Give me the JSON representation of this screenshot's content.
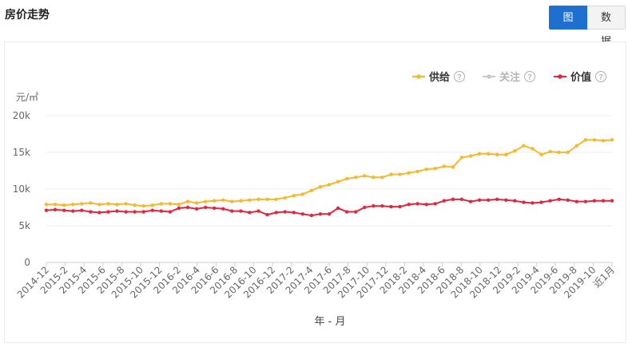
{
  "page": {
    "title": "房价走势"
  },
  "toggle": {
    "chart_label": "图表",
    "data_label": "数据"
  },
  "legend": [
    {
      "name": "供给",
      "color": "#f5b82e",
      "active": true
    },
    {
      "name": "关注",
      "color": "#c8c8c8",
      "active": false
    },
    {
      "name": "价值",
      "color": "#e2263f",
      "active": true
    }
  ],
  "chart_data": {
    "type": "line",
    "ylabel": "元/㎡",
    "xlabel": "年 - 月",
    "ylim": [
      0,
      20000
    ],
    "yticks": [
      "0",
      "5k",
      "10k",
      "15k",
      "20k"
    ],
    "ytick_values": [
      0,
      5000,
      10000,
      15000,
      20000
    ],
    "grid": true,
    "legend_position": "top-right",
    "x_tick_labels": [
      "2014-12",
      "2015-2",
      "2015-4",
      "2015-6",
      "2015-8",
      "2015-10",
      "2015-12",
      "2016-2",
      "2016-4",
      "2016-6",
      "2016-8",
      "2016-10",
      "2016-12",
      "2017-2",
      "2017-4",
      "2017-6",
      "2017-8",
      "2017-10",
      "2017-12",
      "2018-2",
      "2018-4",
      "2018-6",
      "2018-8",
      "2018-10",
      "2018-12",
      "2019-2",
      "2019-4",
      "2019-6",
      "2019-8",
      "2019-10",
      "近1月"
    ],
    "series": [
      {
        "name": "供给",
        "color": "#f5b82e",
        "values": [
          7900,
          7900,
          7800,
          7900,
          8000,
          8100,
          7900,
          8000,
          7900,
          8000,
          7800,
          7700,
          7800,
          8000,
          8000,
          7900,
          8300,
          8100,
          8300,
          8400,
          8500,
          8300,
          8400,
          8500,
          8600,
          8600,
          8600,
          8800,
          9100,
          9300,
          9800,
          10300,
          10600,
          11000,
          11400,
          11600,
          11800,
          11600,
          11600,
          12000,
          12000,
          12200,
          12400,
          12700,
          12800,
          13100,
          13000,
          14300,
          14500,
          14800,
          14800,
          14700,
          14700,
          15200,
          15900,
          15500,
          14700,
          15100,
          15000,
          15000,
          15900,
          16700,
          16700,
          16600,
          16700
        ]
      },
      {
        "name": "价值",
        "color": "#e2263f",
        "values": [
          7100,
          7200,
          7100,
          7000,
          7100,
          6900,
          6800,
          6900,
          7000,
          6900,
          6900,
          6900,
          7100,
          7000,
          6900,
          7400,
          7500,
          7300,
          7500,
          7400,
          7300,
          7000,
          7000,
          6800,
          7000,
          6500,
          6800,
          6900,
          6800,
          6600,
          6400,
          6600,
          6600,
          7400,
          6900,
          6900,
          7500,
          7700,
          7700,
          7600,
          7600,
          7900,
          8000,
          7900,
          8000,
          8400,
          8600,
          8600,
          8300,
          8500,
          8500,
          8600,
          8500,
          8400,
          8200,
          8100,
          8200,
          8400,
          8600,
          8500,
          8300,
          8300,
          8400,
          8400,
          8400
        ]
      }
    ]
  }
}
